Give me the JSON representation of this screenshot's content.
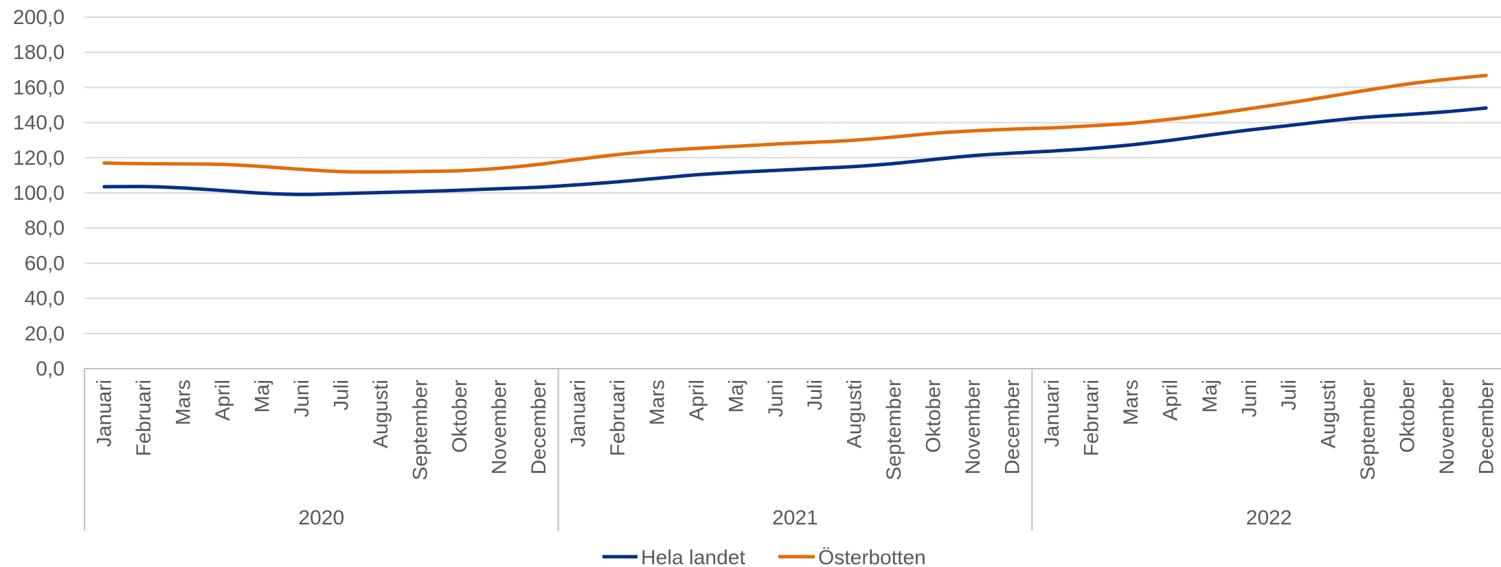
{
  "chart_data": {
    "type": "line",
    "title": "",
    "xlabel": "",
    "ylabel": "",
    "ylim": [
      0,
      200
    ],
    "yticks": [
      "0,0",
      "20,0",
      "40,0",
      "60,0",
      "80,0",
      "100,0",
      "120,0",
      "140,0",
      "160,0",
      "180,0",
      "200,0"
    ],
    "ytick_values": [
      0,
      20,
      40,
      60,
      80,
      100,
      120,
      140,
      160,
      180,
      200
    ],
    "grid": true,
    "legend_position": "bottom",
    "years": [
      "2020",
      "2021",
      "2022"
    ],
    "months": [
      "Januari",
      "Februari",
      "Mars",
      "April",
      "Maj",
      "Juni",
      "Juli",
      "Augusti",
      "September",
      "Oktober",
      "November",
      "December"
    ],
    "series": [
      {
        "name": "Hela landet",
        "color": "#003087",
        "values": [
          103.5,
          103.6,
          102.8,
          101.3,
          99.8,
          99.1,
          99.6,
          100.2,
          100.8,
          101.5,
          102.4,
          103.2,
          104.6,
          106.3,
          108.3,
          110.3,
          111.7,
          112.8,
          113.9,
          115.0,
          116.7,
          119.0,
          121.2,
          122.6,
          123.8,
          125.3,
          127.3,
          129.9,
          132.9,
          135.8,
          138.3,
          140.9,
          143.1,
          144.6,
          146.2,
          148.3
        ]
      },
      {
        "name": "Österbotten",
        "color": "#E36C09",
        "values": [
          117.0,
          116.6,
          116.5,
          116.2,
          115.0,
          113.4,
          112.1,
          111.9,
          112.2,
          112.6,
          114.0,
          116.2,
          119.1,
          121.8,
          123.9,
          125.3,
          126.5,
          127.8,
          128.8,
          130.0,
          131.8,
          133.9,
          135.3,
          136.3,
          137.0,
          138.2,
          139.6,
          141.9,
          144.7,
          147.9,
          151.2,
          154.8,
          158.5,
          161.9,
          164.6,
          166.8
        ]
      }
    ]
  }
}
